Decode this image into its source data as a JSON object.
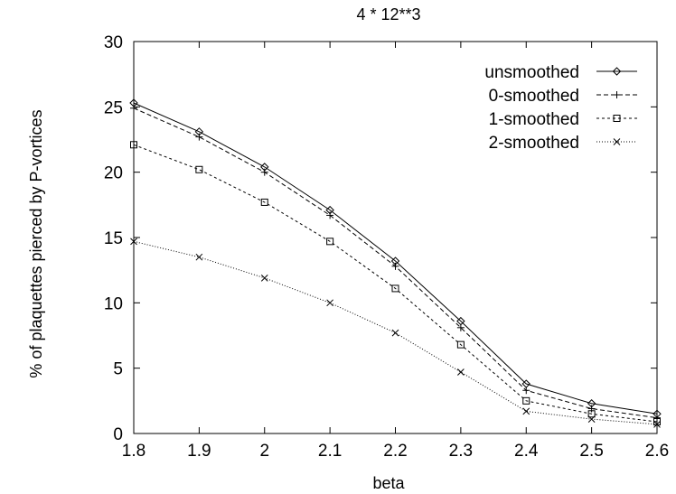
{
  "chart_data": {
    "type": "line",
    "title": "4 * 12**3",
    "xlabel": "beta",
    "ylabel": "% of plaquettes pierced by P-vortices",
    "xlim": [
      1.8,
      2.6
    ],
    "ylim": [
      0,
      30
    ],
    "x_ticks": [
      "1.8",
      "1.9",
      "2",
      "2.1",
      "2.2",
      "2.3",
      "2.4",
      "2.5",
      "2.6"
    ],
    "y_ticks": [
      "0",
      "5",
      "10",
      "15",
      "20",
      "25",
      "30"
    ],
    "grid": false,
    "legend_position": "top-right",
    "x": [
      1.8,
      1.9,
      2.0,
      2.1,
      2.2,
      2.3,
      2.4,
      2.5,
      2.6
    ],
    "series": [
      {
        "name": "unsmoothed",
        "marker": "diamond",
        "dash": "solid",
        "values": [
          25.3,
          23.1,
          20.4,
          17.1,
          13.2,
          8.6,
          3.8,
          2.3,
          1.5
        ]
      },
      {
        "name": "0-smoothed",
        "marker": "plus",
        "dash": "dashed",
        "values": [
          24.9,
          22.7,
          20.0,
          16.7,
          12.8,
          8.1,
          3.3,
          1.9,
          1.2
        ]
      },
      {
        "name": "1-smoothed",
        "marker": "square",
        "dash": "short-dashed",
        "values": [
          22.1,
          20.2,
          17.7,
          14.7,
          11.1,
          6.8,
          2.5,
          1.5,
          0.9
        ]
      },
      {
        "name": "2-smoothed",
        "marker": "cross",
        "dash": "dotted",
        "values": [
          14.7,
          13.5,
          11.9,
          10.0,
          7.7,
          4.7,
          1.7,
          1.1,
          0.7
        ]
      }
    ]
  }
}
